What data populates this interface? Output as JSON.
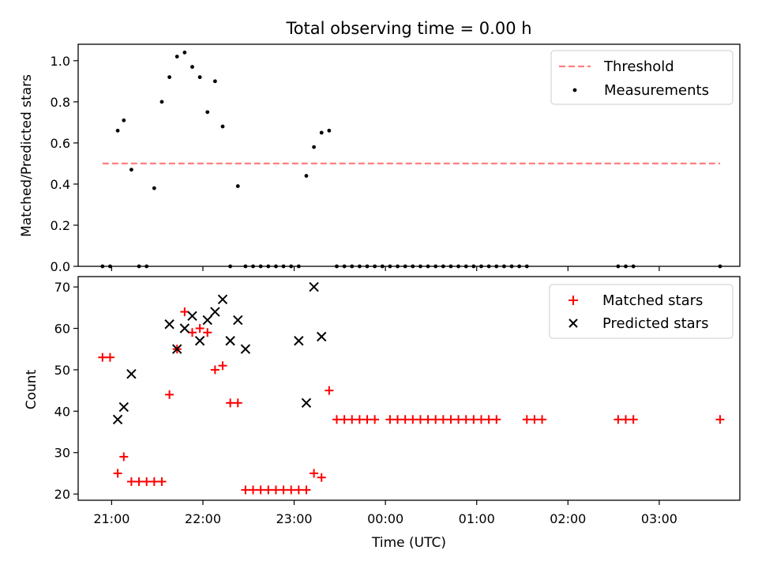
{
  "chart_data": [
    {
      "type": "scatter",
      "title": "Total observing time = 0.00 h",
      "xlabel": "",
      "ylabel": "Matched/Predicted stars",
      "xlim": [
        "20:38",
        "03:53"
      ],
      "ylim": [
        0,
        1.08
      ],
      "yticks": [
        0.0,
        0.2,
        0.4,
        0.6,
        0.8,
        1.0
      ],
      "ytick_labels": [
        "0.0",
        "0.2",
        "0.4",
        "0.6",
        "0.8",
        "1.0"
      ],
      "legend": "top-right",
      "series": [
        {
          "name": "Threshold",
          "kind": "dashed-line",
          "color": "#ff7f7f",
          "x": [
            "20:54",
            "03:40"
          ],
          "y": [
            0.5,
            0.5
          ]
        },
        {
          "name": "Measurements",
          "kind": "points",
          "color": "#000000",
          "x": [
            "20:54",
            "20:59",
            "21:04",
            "21:08",
            "21:13",
            "21:18",
            "21:23",
            "21:28",
            "21:33",
            "21:38",
            "21:43",
            "21:48",
            "21:53",
            "21:58",
            "22:03",
            "22:08",
            "22:13",
            "22:18",
            "22:23",
            "22:28",
            "22:33",
            "22:38",
            "22:43",
            "22:48",
            "22:53",
            "22:58",
            "23:03",
            "23:08",
            "23:13",
            "23:18",
            "23:23",
            "23:28",
            "23:33",
            "23:38",
            "23:43",
            "23:48",
            "23:53",
            "23:58",
            "00:03",
            "00:08",
            "00:13",
            "00:18",
            "00:23",
            "00:28",
            "00:33",
            "00:38",
            "00:43",
            "00:48",
            "00:53",
            "00:58",
            "01:03",
            "01:08",
            "01:13",
            "01:18",
            "01:23",
            "01:28",
            "01:33",
            "02:33",
            "02:38",
            "02:43",
            "03:40"
          ],
          "y": [
            0,
            0,
            0.66,
            0.71,
            0.47,
            0,
            0,
            0.38,
            0.8,
            0.92,
            1.02,
            1.04,
            0.97,
            0.92,
            0.75,
            0.9,
            0.68,
            0,
            0.39,
            0,
            0,
            0,
            0,
            0,
            0,
            0,
            0,
            0.44,
            0.58,
            0.65,
            0.66,
            0,
            0,
            0,
            0,
            0,
            0,
            0,
            0,
            0,
            0,
            0,
            0,
            0,
            0,
            0,
            0,
            0,
            0,
            0,
            0,
            0,
            0,
            0,
            0,
            0,
            0,
            0,
            0,
            0,
            0
          ]
        }
      ]
    },
    {
      "type": "scatter",
      "title": "",
      "xlabel": "Time (UTC)",
      "ylabel": "Count",
      "xlim": [
        "20:38",
        "03:53"
      ],
      "ylim": [
        18.5,
        72.5
      ],
      "yticks": [
        20,
        30,
        40,
        50,
        60,
        70
      ],
      "ytick_labels": [
        "20",
        "30",
        "40",
        "50",
        "60",
        "70"
      ],
      "xticks": [
        "21:00",
        "22:00",
        "23:00",
        "00:00",
        "01:00",
        "02:00",
        "03:00"
      ],
      "legend": "top-right",
      "series": [
        {
          "name": "Matched stars",
          "marker": "plus",
          "color": "#ff0000",
          "x": [
            "20:54",
            "20:59",
            "21:04",
            "21:08",
            "21:13",
            "21:18",
            "21:23",
            "21:28",
            "21:33",
            "21:38",
            "21:43",
            "21:48",
            "21:53",
            "21:58",
            "22:03",
            "22:08",
            "22:13",
            "22:18",
            "22:23",
            "22:28",
            "22:33",
            "22:38",
            "22:43",
            "22:48",
            "22:53",
            "22:58",
            "23:03",
            "23:08",
            "23:13",
            "23:18",
            "23:23",
            "23:28",
            "23:33",
            "23:38",
            "23:43",
            "23:48",
            "23:53",
            "00:03",
            "00:08",
            "00:13",
            "00:18",
            "00:23",
            "00:28",
            "00:33",
            "00:38",
            "00:43",
            "00:48",
            "00:53",
            "00:58",
            "01:03",
            "01:08",
            "01:13",
            "01:33",
            "01:38",
            "01:43",
            "02:33",
            "02:38",
            "02:43",
            "03:40"
          ],
          "y": [
            53,
            53,
            25,
            29,
            23,
            23,
            23,
            23,
            23,
            44,
            55,
            64,
            59,
            60,
            59,
            50,
            51,
            42,
            42,
            21,
            21,
            21,
            21,
            21,
            21,
            21,
            21,
            21,
            25,
            24,
            45,
            38,
            38,
            38,
            38,
            38,
            38,
            38,
            38,
            38,
            38,
            38,
            38,
            38,
            38,
            38,
            38,
            38,
            38,
            38,
            38,
            38,
            38,
            38,
            38,
            38,
            38,
            38,
            38
          ]
        },
        {
          "name": "Predicted stars",
          "marker": "x",
          "color": "#000000",
          "x": [
            "21:04",
            "21:08",
            "21:13",
            "21:38",
            "21:43",
            "21:48",
            "21:53",
            "21:58",
            "22:03",
            "22:08",
            "22:13",
            "22:18",
            "22:23",
            "22:28",
            "23:03",
            "23:08",
            "23:13",
            "23:18"
          ],
          "y": [
            38,
            41,
            49,
            61,
            55,
            60,
            63,
            57,
            62,
            64,
            67,
            57,
            62,
            55,
            57,
            42,
            70,
            58
          ]
        }
      ]
    }
  ]
}
